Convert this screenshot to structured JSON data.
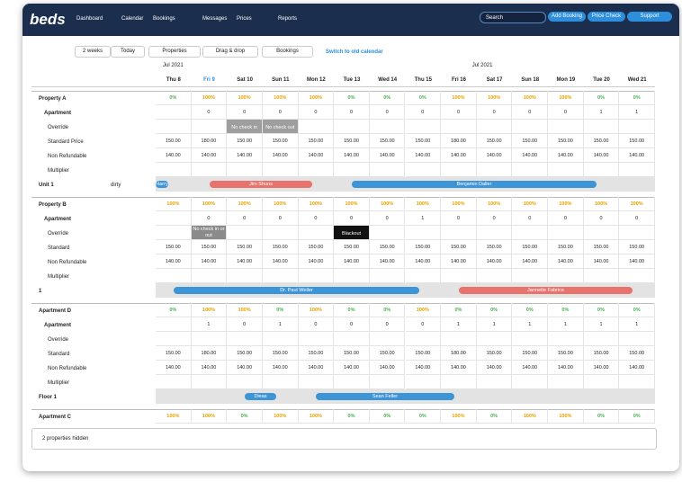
{
  "header": {
    "logo": "beds",
    "nav": [
      "Dashboard",
      "Calendar",
      "Bookings",
      "Messages",
      "Prices",
      "Reports"
    ],
    "search": "Search",
    "buttons": [
      "Add Booking",
      "Price Check",
      "Support"
    ]
  },
  "toolbar": {
    "range": "2 weeks",
    "today": "Today",
    "properties": "Properties",
    "drag": "Drag & drop",
    "bookings": "Bookings",
    "switch": "Switch to old calendar"
  },
  "calendar": {
    "months": [
      "Jul 2021",
      "Jul 2021"
    ],
    "days": [
      "Thu 8",
      "Fri 9",
      "Sat 10",
      "Sun 11",
      "Mon 12",
      "Tue 13",
      "Wed 14",
      "Thu 15",
      "Fri 16",
      "Sat 17",
      "Sun 18",
      "Mon 19",
      "Tue 20",
      "Wed 21"
    ],
    "properties": [
      {
        "name": "Property A",
        "occupancy": [
          "0%",
          "100%",
          "100%",
          "100%",
          "100%",
          "0%",
          "0%",
          "0%",
          "100%",
          "100%",
          "100%",
          "100%",
          "0%",
          "0%"
        ],
        "room": "Apartment",
        "availability": [
          null,
          "0",
          "0",
          "0",
          "0",
          "0",
          "0",
          "0",
          "0",
          "0",
          "0",
          "0",
          "1",
          "1"
        ],
        "rows": [
          {
            "label": "Override",
            "cells": [
              null,
              null,
              "No check in",
              "No check out",
              null,
              null,
              null,
              null,
              null,
              null,
              null,
              null,
              null,
              null
            ]
          },
          {
            "label": "Standard Price",
            "cells": [
              "150.00",
              "180.00",
              "150.00",
              "150.00",
              "150.00",
              "150.00",
              "150.00",
              "150.00",
              "180.00",
              "150.00",
              "150.00",
              "150.00",
              "150.00",
              "150.00"
            ]
          },
          {
            "label": "Non Refundable",
            "cells": [
              "140.00",
              "140.00",
              "140.00",
              "140.00",
              "140.00",
              "140.00",
              "140.00",
              "140.00",
              "140.00",
              "140.00",
              "140.00",
              "140.00",
              "140.00",
              "140.00"
            ]
          },
          {
            "label": "Multiplier"
          }
        ],
        "unit": "Unit 1",
        "status": "dirty",
        "bookings": [
          {
            "name": "Harry",
            "color": "#3d95d8"
          },
          {
            "name": "Jim Shuns",
            "color": "#e8736c"
          },
          {
            "name": "Benjamin Daller",
            "color": "#3d95d8"
          }
        ]
      },
      {
        "name": "Property B",
        "occupancy": [
          "100%",
          "100%",
          "100%",
          "100%",
          "100%",
          "100%",
          "100%",
          "100%",
          "100%",
          "100%",
          "100%",
          "100%",
          "100%",
          "100%"
        ],
        "room": "Apartment",
        "availability": [
          null,
          "0",
          "0",
          "0",
          "0",
          "0",
          "0",
          "1",
          "0",
          "0",
          "0",
          "0",
          "0",
          "0"
        ],
        "rows": [
          {
            "label": "Override",
            "cells": [
              null,
              "No check in or out",
              null,
              null,
              null,
              "Blackout",
              null,
              null,
              null,
              null,
              null,
              null,
              null,
              null
            ]
          },
          {
            "label": "Standard",
            "cells": [
              "150.00",
              "150.00",
              "150.00",
              "150.00",
              "150.00",
              "150.00",
              "150.00",
              "150.00",
              "150.00",
              "150.00",
              "150.00",
              "150.00",
              "150.00",
              "150.00"
            ]
          },
          {
            "label": "Non Refundable",
            "cells": [
              "140.00",
              "140.00",
              "140.00",
              "140.00",
              "140.00",
              "140.00",
              "140.00",
              "140.00",
              "140.00",
              "140.00",
              "140.00",
              "140.00",
              "140.00",
              "140.00"
            ]
          },
          {
            "label": "Multiplier"
          }
        ],
        "unit": "1",
        "bookings": [
          {
            "name": "Dr. Paul Weller",
            "color": "#3d95d8"
          },
          {
            "name": "Jannette Fabrice",
            "color": "#e8736c"
          }
        ]
      },
      {
        "name": "Apartment D",
        "occupancy": [
          "0%",
          "100%",
          "100%",
          "0%",
          "100%",
          "0%",
          "0%",
          "100%",
          "0%",
          "0%",
          "0%",
          "0%",
          "0%",
          "0%"
        ],
        "room": "Apartment",
        "availability": [
          null,
          "1",
          "0",
          "1",
          "0",
          "0",
          "0",
          "0",
          "1",
          "1",
          "1",
          "1",
          "1",
          "1"
        ],
        "rows": [
          {
            "label": "Override"
          },
          {
            "label": "Standard",
            "cells": [
              "150.00",
              "180.00",
              "150.00",
              "150.00",
              "150.00",
              "150.00",
              "150.00",
              "150.00",
              "180.00",
              "150.00",
              "150.00",
              "150.00",
              "150.00",
              "150.00"
            ]
          },
          {
            "label": "Non Refundable",
            "cells": [
              "140.00",
              "140.00",
              "140.00",
              "140.00",
              "140.00",
              "140.00",
              "140.00",
              "140.00",
              "140.00",
              "140.00",
              "140.00",
              "140.00",
              "140.00",
              "140.00"
            ]
          },
          {
            "label": "Multiplier"
          }
        ],
        "unit": "Floor 1",
        "bookings": [
          {
            "name": "Dieas",
            "color": "#3d95d8"
          },
          {
            "name": "Sean Feller",
            "color": "#3d95d8"
          }
        ]
      },
      {
        "name": "Apartment C",
        "occupancy": [
          "100%",
          "100%",
          "0%",
          "100%",
          "100%",
          "0%",
          "0%",
          "0%",
          "100%",
          "0%",
          "100%",
          "100%",
          "0%",
          "0%"
        ]
      }
    ]
  },
  "footer": "2 properties hidden"
}
